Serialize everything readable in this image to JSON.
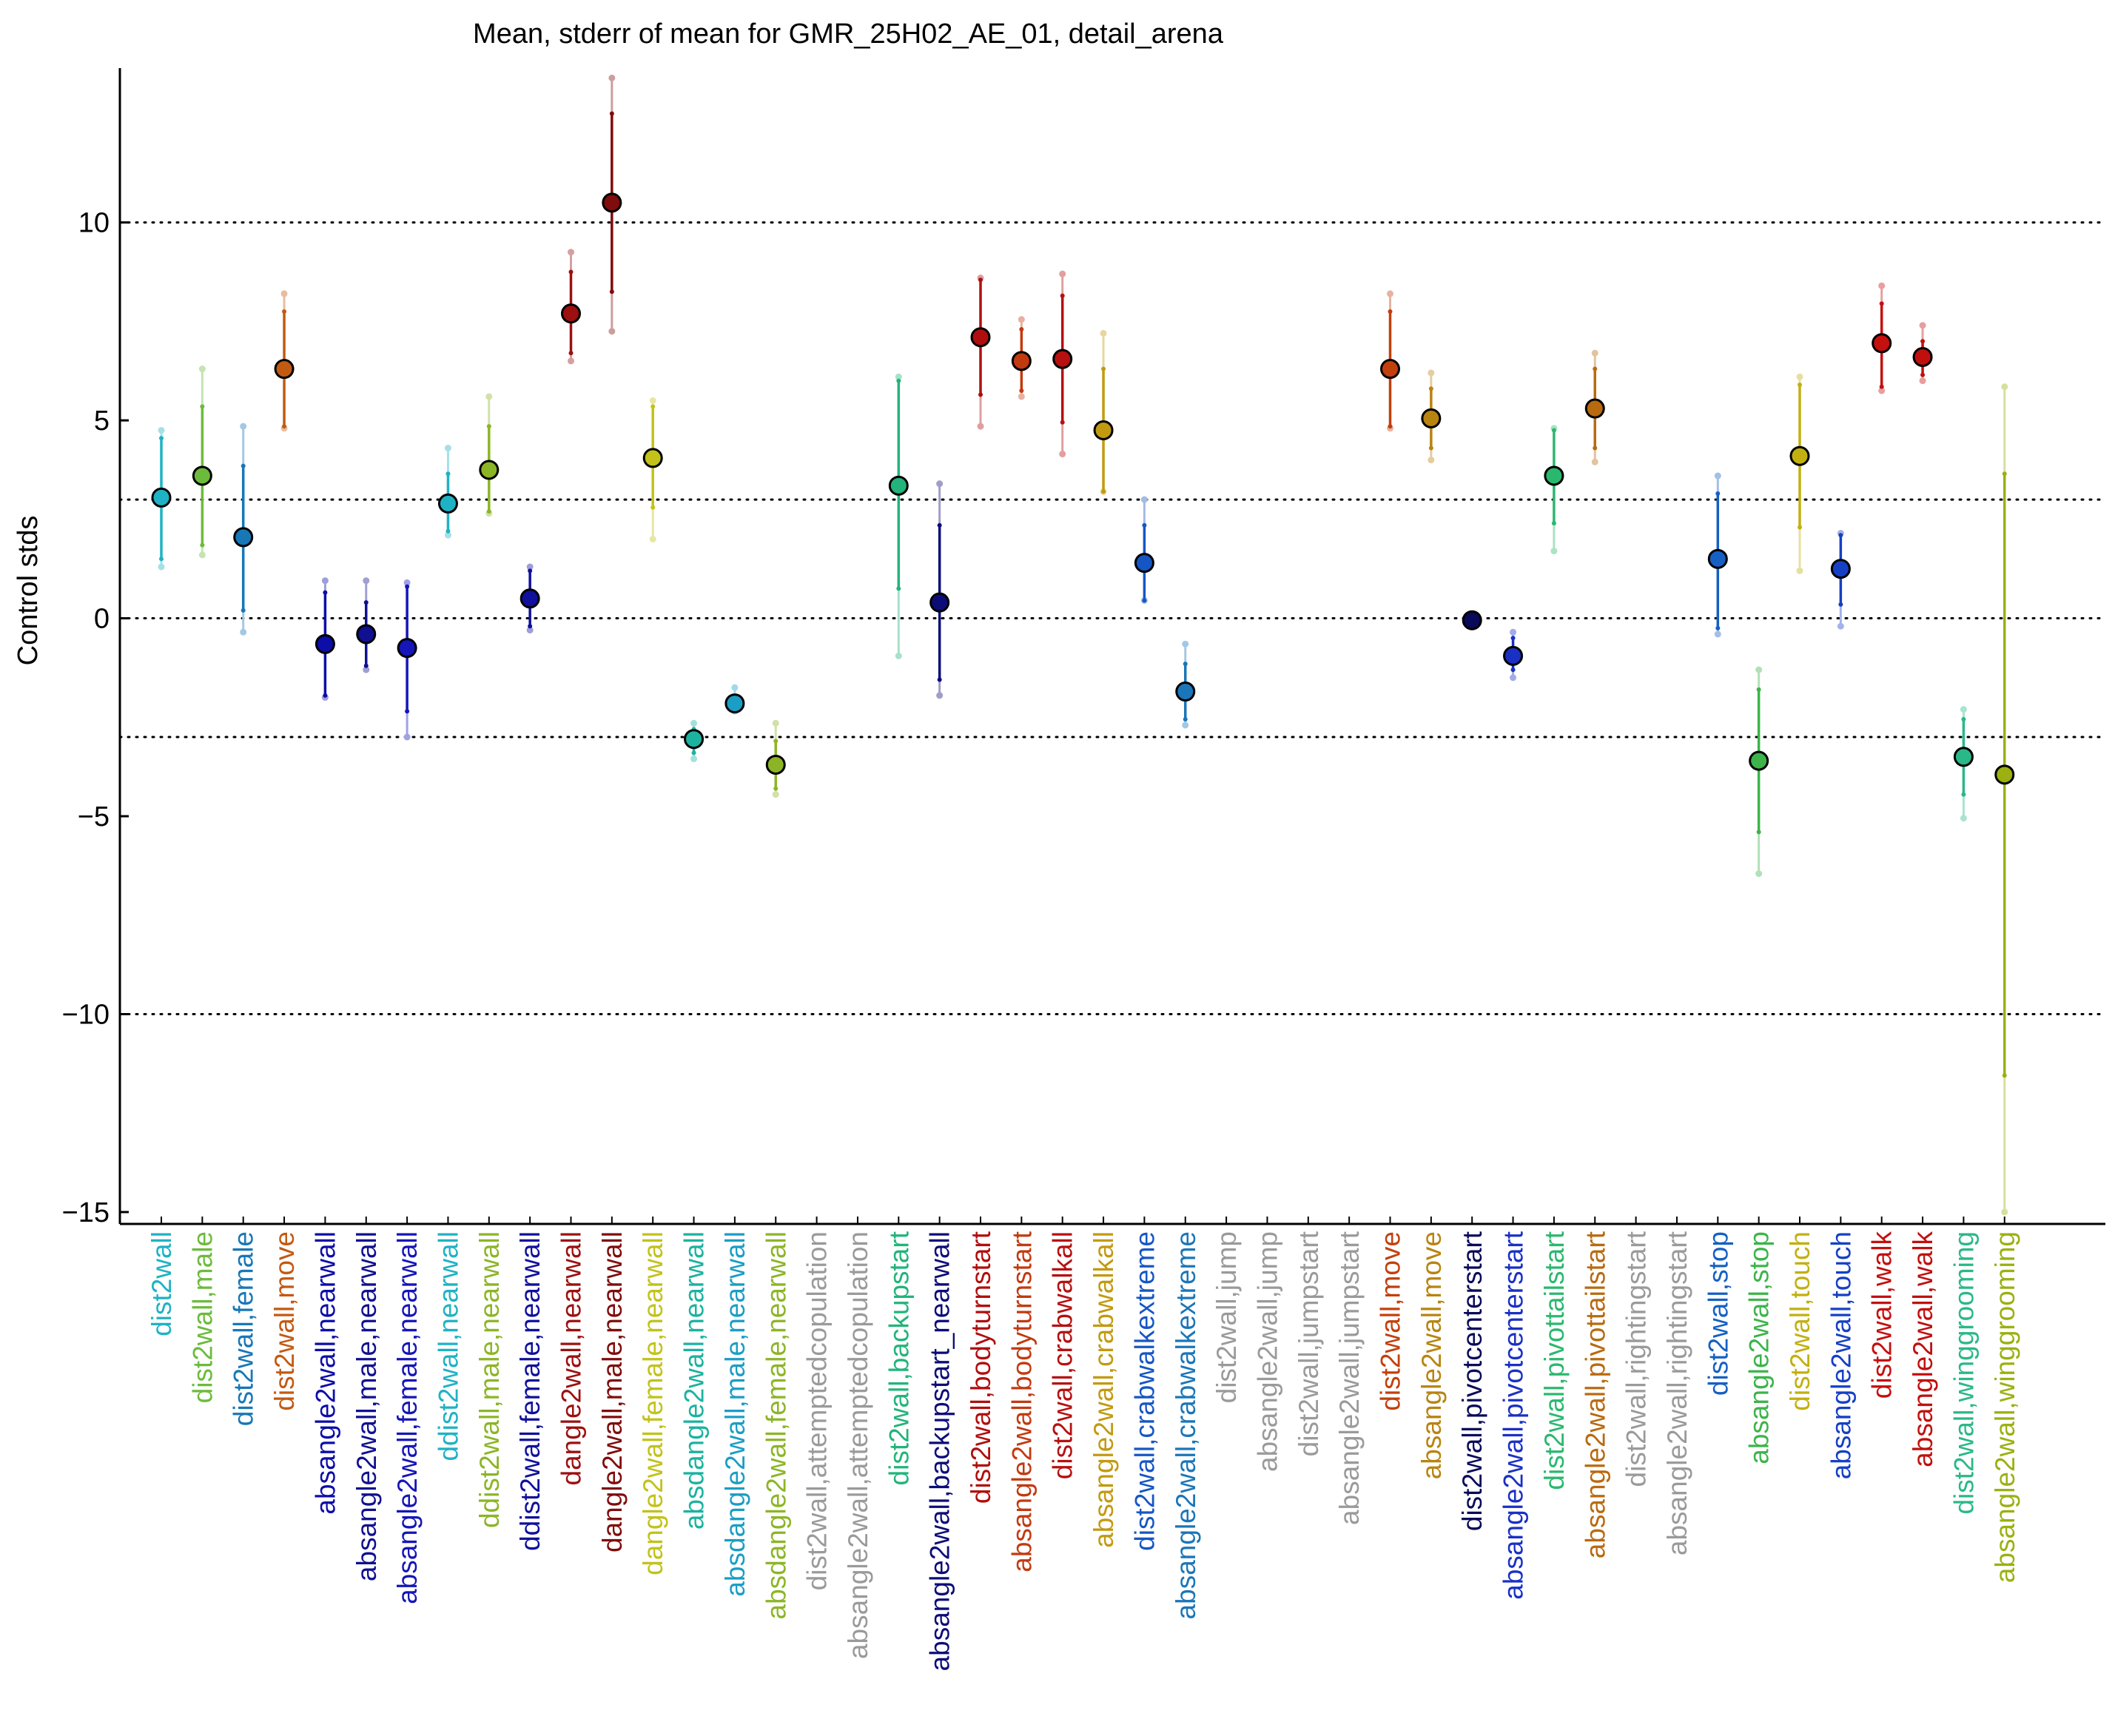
{
  "chart_data": {
    "type": "scatter",
    "title": "Mean, stderr of mean for GMR_25H02_AE_01, detail_arena",
    "xlabel": "",
    "ylabel": "Control stds",
    "ylim": [
      -15.3,
      13.9
    ],
    "yticks": [
      -15,
      -10,
      -5,
      0,
      5,
      10
    ],
    "reference_lines": [
      10,
      3,
      0,
      -3,
      -10
    ],
    "grid": false,
    "legend": "none",
    "points": [
      {
        "label": "dist2wall",
        "color": "#1fb2c4",
        "mean": 3.05,
        "se_lo": 1.5,
        "se_hi": 4.55,
        "outer_lo": 1.3,
        "outer_hi": 4.75
      },
      {
        "label": "dist2wall,male",
        "color": "#6cbb3c",
        "mean": 3.6,
        "se_lo": 1.85,
        "se_hi": 5.35,
        "outer_lo": 1.6,
        "outer_hi": 6.3
      },
      {
        "label": "dist2wall,female",
        "color": "#1877b7",
        "mean": 2.05,
        "se_lo": 0.2,
        "se_hi": 3.85,
        "outer_lo": -0.35,
        "outer_hi": 4.85
      },
      {
        "label": "dist2wall,move",
        "color": "#c25a12",
        "mean": 6.3,
        "se_lo": 4.85,
        "se_hi": 7.75,
        "outer_lo": 4.8,
        "outer_hi": 8.2
      },
      {
        "label": "absangle2wall,nearwall",
        "color": "#0d0da8",
        "mean": -0.65,
        "se_lo": -1.95,
        "se_hi": 0.65,
        "outer_lo": -2.0,
        "outer_hi": 0.95
      },
      {
        "label": "absangle2wall,male,nearwall",
        "color": "#101090",
        "mean": -0.4,
        "se_lo": -1.2,
        "se_hi": 0.4,
        "outer_lo": -1.3,
        "outer_hi": 0.95
      },
      {
        "label": "absangle2wall,female,nearwall",
        "color": "#1515b8",
        "mean": -0.75,
        "se_lo": -2.35,
        "se_hi": 0.8,
        "outer_lo": -3.0,
        "outer_hi": 0.9
      },
      {
        "label": "ddist2wall,nearwall",
        "color": "#1fb2c4",
        "mean": 2.9,
        "se_lo": 2.2,
        "se_hi": 3.65,
        "outer_lo": 2.1,
        "outer_hi": 4.3
      },
      {
        "label": "ddist2wall,male,nearwall",
        "color": "#8cb526",
        "mean": 3.75,
        "se_lo": 2.7,
        "se_hi": 4.85,
        "outer_lo": 2.65,
        "outer_hi": 5.6
      },
      {
        "label": "ddist2wall,female,nearwall",
        "color": "#10109c",
        "mean": 0.5,
        "se_lo": -0.2,
        "se_hi": 1.2,
        "outer_lo": -0.3,
        "outer_hi": 1.3
      },
      {
        "label": "dangle2wall,nearwall",
        "color": "#9c1010",
        "mean": 7.7,
        "se_lo": 6.7,
        "se_hi": 8.75,
        "outer_lo": 6.5,
        "outer_hi": 9.25
      },
      {
        "label": "dangle2wall,male,nearwall",
        "color": "#800c0c",
        "mean": 10.5,
        "se_lo": 8.25,
        "se_hi": 12.75,
        "outer_lo": 7.25,
        "outer_hi": 13.65
      },
      {
        "label": "dangle2wall,female,nearwall",
        "color": "#c2c21a",
        "mean": 4.05,
        "se_lo": 2.8,
        "se_hi": 5.35,
        "outer_lo": 2.0,
        "outer_hi": 5.5
      },
      {
        "label": "absdangle2wall,nearwall",
        "color": "#1cb2a0",
        "mean": -3.05,
        "se_lo": -3.4,
        "se_hi": -2.8,
        "outer_lo": -3.55,
        "outer_hi": -2.65
      },
      {
        "label": "absdangle2wall,male,nearwall",
        "color": "#1a9ec4",
        "mean": -2.15,
        "se_lo": -2.3,
        "se_hi": -2.0,
        "outer_lo": -2.35,
        "outer_hi": -1.75
      },
      {
        "label": "absdangle2wall,female,nearwall",
        "color": "#8cb526",
        "mean": -3.7,
        "se_lo": -4.3,
        "se_hi": -3.1,
        "outer_lo": -4.45,
        "outer_hi": -2.65
      },
      {
        "label": "dist2wall,attemptedcopulation",
        "color": "#9a9a9a",
        "mean": null
      },
      {
        "label": "absangle2wall,attemptedcopulation",
        "color": "#9a9a9a",
        "mean": null
      },
      {
        "label": "dist2wall,backupstart",
        "color": "#22b47a",
        "mean": 3.35,
        "se_lo": 0.75,
        "se_hi": 6.0,
        "outer_lo": -0.95,
        "outer_hi": 6.1
      },
      {
        "label": "absangle2wall,backupstart_nearwall",
        "color": "#0c0c78",
        "mean": 0.4,
        "se_lo": -1.55,
        "se_hi": 2.35,
        "outer_lo": -1.95,
        "outer_hi": 3.4
      },
      {
        "label": "dist2wall,bodyturnstart",
        "color": "#b00e0e",
        "mean": 7.1,
        "se_lo": 5.65,
        "se_hi": 8.55,
        "outer_lo": 4.85,
        "outer_hi": 8.6
      },
      {
        "label": "absangle2wall,bodyturnstart",
        "color": "#c23a10",
        "mean": 6.5,
        "se_lo": 5.75,
        "se_hi": 7.3,
        "outer_lo": 5.6,
        "outer_hi": 7.55
      },
      {
        "label": "dist2wall,crabwalkall",
        "color": "#b61010",
        "mean": 6.55,
        "se_lo": 4.95,
        "se_hi": 8.15,
        "outer_lo": 4.15,
        "outer_hi": 8.7
      },
      {
        "label": "absangle2wall,crabwalkall",
        "color": "#c29a10",
        "mean": 4.75,
        "se_lo": 3.2,
        "se_hi": 6.3,
        "outer_lo": 3.2,
        "outer_hi": 7.2
      },
      {
        "label": "dist2wall,crabwalkextreme",
        "color": "#1656c4",
        "mean": 1.4,
        "se_lo": 0.45,
        "se_hi": 2.35,
        "outer_lo": 0.45,
        "outer_hi": 3.0
      },
      {
        "label": "absangle2wall,crabwalkextreme",
        "color": "#1a76b8",
        "mean": -1.85,
        "se_lo": -2.55,
        "se_hi": -1.15,
        "outer_lo": -2.7,
        "outer_hi": -0.65
      },
      {
        "label": "dist2wall,jump",
        "color": "#9a9a9a",
        "mean": null
      },
      {
        "label": "absangle2wall,jump",
        "color": "#9a9a9a",
        "mean": null
      },
      {
        "label": "dist2wall,jumpstart",
        "color": "#9a9a9a",
        "mean": null
      },
      {
        "label": "absangle2wall,jumpstart",
        "color": "#9a9a9a",
        "mean": null
      },
      {
        "label": "dist2wall,move",
        "color": "#c2400e",
        "mean": 6.3,
        "se_lo": 4.85,
        "se_hi": 7.75,
        "outer_lo": 4.8,
        "outer_hi": 8.2
      },
      {
        "label": "absangle2wall,move",
        "color": "#b88410",
        "mean": 5.05,
        "se_lo": 4.3,
        "se_hi": 5.8,
        "outer_lo": 4.0,
        "outer_hi": 6.2
      },
      {
        "label": "dist2wall,pivotcenterstart",
        "color": "#0a0a5a",
        "mean": -0.05,
        "se_lo": -0.1,
        "se_hi": 0.0,
        "outer_lo": -0.15,
        "outer_hi": 0.05
      },
      {
        "label": "absangle2wall,pivotcenterstart",
        "color": "#1a30c4",
        "mean": -0.95,
        "se_lo": -1.3,
        "se_hi": -0.5,
        "outer_lo": -1.5,
        "outer_hi": -0.35
      },
      {
        "label": "dist2wall,pivottailstart",
        "color": "#2ab86e",
        "mean": 3.6,
        "se_lo": 2.4,
        "se_hi": 4.75,
        "outer_lo": 1.7,
        "outer_hi": 4.8
      },
      {
        "label": "absangle2wall,pivottailstart",
        "color": "#b86a10",
        "mean": 5.3,
        "se_lo": 4.3,
        "se_hi": 6.3,
        "outer_lo": 3.95,
        "outer_hi": 6.7
      },
      {
        "label": "dist2wall,rightingstart",
        "color": "#9a9a9a",
        "mean": null
      },
      {
        "label": "absangle2wall,rightingstart",
        "color": "#9a9a9a",
        "mean": null
      },
      {
        "label": "dist2wall,stop",
        "color": "#1660c4",
        "mean": 1.5,
        "se_lo": -0.25,
        "se_hi": 3.15,
        "outer_lo": -0.4,
        "outer_hi": 3.6
      },
      {
        "label": "absangle2wall,stop",
        "color": "#3cb44a",
        "mean": -3.6,
        "se_lo": -5.4,
        "se_hi": -1.8,
        "outer_lo": -6.45,
        "outer_hi": -1.3
      },
      {
        "label": "dist2wall,touch",
        "color": "#c2b010",
        "mean": 4.1,
        "se_lo": 2.3,
        "se_hi": 5.9,
        "outer_lo": 1.2,
        "outer_hi": 6.1
      },
      {
        "label": "absangle2wall,touch",
        "color": "#1640c4",
        "mean": 1.25,
        "se_lo": 0.35,
        "se_hi": 2.1,
        "outer_lo": -0.2,
        "outer_hi": 2.15
      },
      {
        "label": "dist2wall,walk",
        "color": "#c4100e",
        "mean": 6.95,
        "se_lo": 5.85,
        "se_hi": 7.95,
        "outer_lo": 5.75,
        "outer_hi": 8.4
      },
      {
        "label": "absangle2wall,walk",
        "color": "#c0100e",
        "mean": 6.6,
        "se_lo": 6.15,
        "se_hi": 7.0,
        "outer_lo": 6.0,
        "outer_hi": 7.4
      },
      {
        "label": "dist2wall,winggrooming",
        "color": "#2ab888",
        "mean": -3.5,
        "se_lo": -4.45,
        "se_hi": -2.55,
        "outer_lo": -5.05,
        "outer_hi": -2.3
      },
      {
        "label": "absangle2wall,winggrooming",
        "color": "#9cb010",
        "mean": -3.95,
        "se_lo": -11.55,
        "se_hi": 3.65,
        "outer_lo": -15.0,
        "outer_hi": 5.85
      }
    ]
  }
}
